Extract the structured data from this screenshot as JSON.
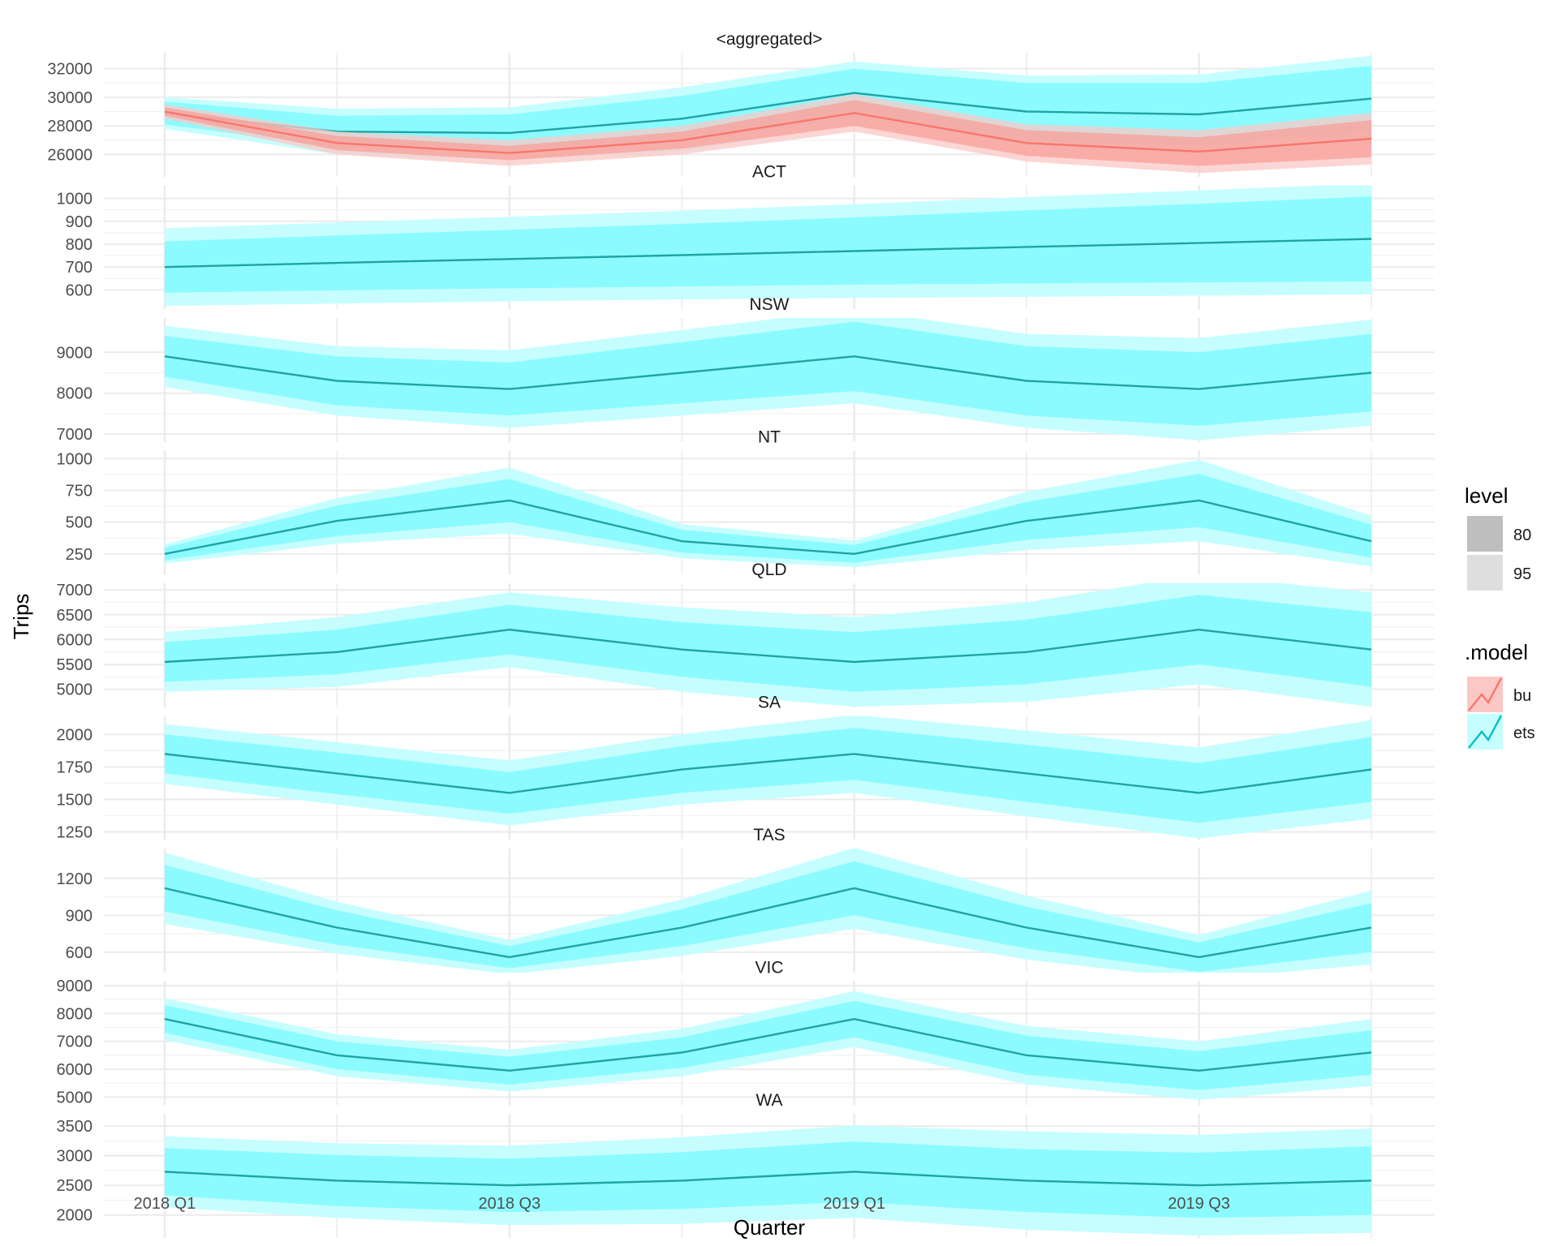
{
  "chart_data": {
    "type": "line",
    "xlabel": "Quarter",
    "ylabel": "Trips",
    "x": [
      "2018 Q1",
      "2018 Q2",
      "2018 Q3",
      "2018 Q4",
      "2019 Q1",
      "2019 Q2",
      "2019 Q3",
      "2019 Q4"
    ],
    "x_tick_labels": [
      "2018 Q1",
      "2018 Q3",
      "2019 Q1",
      "2019 Q3"
    ],
    "grid": true,
    "legends": [
      {
        "title": "level",
        "entries": [
          {
            "label": "80",
            "color": "#bebebe"
          },
          {
            "label": "95",
            "color": "#dedede"
          }
        ]
      },
      {
        "title": ".model",
        "entries": [
          {
            "label": "bu",
            "color": "#F8766D"
          },
          {
            "label": "ets",
            "color": "#00BFC4"
          }
        ]
      }
    ],
    "legend_position": "right",
    "colors": {
      "ets_line": "#1fa3a7",
      "ets_80": "#8cfbff",
      "ets_95": "#c6feff",
      "bu_line": "#F8766D",
      "bu_80": "#f99f9a",
      "bu_95": "#fbc8c5"
    },
    "panels": [
      {
        "title": "<aggregated>",
        "ylim": [
          25000,
          33000
        ],
        "yticks": [
          "26000",
          "28000",
          "30000",
          "32000"
        ],
        "series": [
          {
            "name": "ets",
            "values": [
              28900,
              27600,
              27500,
              28500,
              30300,
              29000,
              28800,
              29900
            ],
            "lo80": [
              28100,
              26500,
              26200,
              26900,
              28600,
              27000,
              26600,
              27600
            ],
            "hi80": [
              29700,
              28700,
              28800,
              30100,
              32000,
              31000,
              31000,
              32200
            ],
            "lo95": [
              27800,
              26000,
              25600,
              26200,
              28100,
              26500,
              26000,
              26900
            ],
            "hi95": [
              30000,
              29200,
              29300,
              30700,
              32500,
              31500,
              31600,
              32900
            ]
          },
          {
            "name": "bu",
            "values": [
              29000,
              26800,
              26100,
              27000,
              28900,
              26800,
              26200,
              27100
            ],
            "lo80": [
              28700,
              26300,
              25600,
              26400,
              28000,
              25900,
              25200,
              25800
            ],
            "hi80": [
              29300,
              27300,
              26600,
              27600,
              29800,
              27700,
              27200,
              28400
            ],
            "lo95": [
              28500,
              26000,
              25200,
              26000,
              27600,
              25500,
              24700,
              25300
            ],
            "hi95": [
              29500,
              27600,
              27000,
              28000,
              30200,
              28100,
              27700,
              28900
            ]
          }
        ]
      },
      {
        "title": "ACT",
        "ylim": [
          550,
          1050
        ],
        "yticks": [
          "600",
          "700",
          "800",
          "900",
          "1000"
        ],
        "series": [
          {
            "name": "ets",
            "values": [
              700,
              718,
              735,
              752,
              770,
              788,
              805,
              823
            ],
            "lo80": [
              588,
              598,
              607,
              615,
              623,
              628,
              633,
              637
            ],
            "hi80": [
              812,
              838,
              863,
              889,
              917,
              948,
              977,
              1009
            ],
            "lo95": [
              530,
              540,
              550,
              558,
              565,
              570,
              575,
              580
            ],
            "hi95": [
              870,
              895,
              920,
              946,
              975,
              1006,
              1035,
              1066
            ]
          }
        ]
      },
      {
        "title": "NSW",
        "ylim": [
          7000,
          9800
        ],
        "yticks": [
          "7000",
          "8000",
          "9000"
        ],
        "series": [
          {
            "name": "ets",
            "values": [
              8900,
              8300,
              8100,
              8500,
              8900,
              8300,
              8100,
              8500
            ],
            "lo80": [
              8400,
              7700,
              7450,
              7750,
              8050,
              7450,
              7200,
              7550
            ],
            "hi80": [
              9400,
              8900,
              8750,
              9250,
              9750,
              9150,
              9000,
              9450
            ],
            "lo95": [
              8150,
              7450,
              7150,
              7450,
              7750,
              7150,
              6850,
              7200
            ],
            "hi95": [
              9650,
              9150,
              9050,
              9550,
              10050,
              9450,
              9350,
              9800
            ]
          }
        ]
      },
      {
        "title": "NT",
        "ylim": [
          150,
          1050
        ],
        "yticks": [
          "250",
          "500",
          "750",
          "1000"
        ],
        "series": [
          {
            "name": "ets",
            "values": [
              250,
              510,
              670,
              350,
              250,
              510,
              670,
              350
            ],
            "lo80": [
              200,
              390,
              500,
              260,
              180,
              360,
              460,
              220
            ],
            "hi80": [
              300,
              630,
              840,
              440,
              320,
              660,
              880,
              480
            ],
            "lo95": [
              175,
              330,
              410,
              215,
              145,
              280,
              350,
              150
            ],
            "hi95": [
              325,
              690,
              930,
              485,
              355,
              740,
              990,
              550
            ]
          }
        ]
      },
      {
        "title": "QLD",
        "ylim": [
          4800,
          7100
        ],
        "yticks": [
          "5000",
          "5500",
          "6000",
          "6500",
          "7000"
        ],
        "series": [
          {
            "name": "ets",
            "values": [
              5550,
              5750,
              6200,
              5800,
              5550,
              5750,
              6200,
              5800
            ],
            "lo80": [
              5150,
              5300,
              5700,
              5250,
              4950,
              5100,
              5500,
              5050
            ],
            "hi80": [
              5950,
              6200,
              6700,
              6350,
              6150,
              6400,
              6900,
              6550
            ],
            "lo95": [
              4950,
              5050,
              5450,
              4950,
              4650,
              4750,
              5100,
              4650
            ],
            "hi95": [
              6150,
              6450,
              6950,
              6650,
              6450,
              6750,
              7300,
              6950
            ]
          }
        ]
      },
      {
        "title": "SA",
        "ylim": [
          1250,
          2130
        ],
        "yticks": [
          "1250",
          "1500",
          "1750",
          "2000"
        ],
        "series": [
          {
            "name": "ets",
            "values": [
              1850,
              1700,
              1550,
              1730,
              1850,
              1700,
              1550,
              1730
            ],
            "lo80": [
              1700,
              1540,
              1390,
              1550,
              1650,
              1480,
              1320,
              1480
            ],
            "hi80": [
              2000,
              1860,
              1710,
              1910,
              2050,
              1920,
              1780,
              1980
            ],
            "lo95": [
              1620,
              1460,
              1300,
              1460,
              1550,
              1370,
              1200,
              1350
            ],
            "hi95": [
              2080,
              1940,
              1800,
              2000,
              2150,
              2030,
              1900,
              2110
            ]
          }
        ]
      },
      {
        "title": "TAS",
        "ylim": [
          500,
          1430
        ],
        "yticks": [
          "600",
          "900",
          "1200"
        ],
        "series": [
          {
            "name": "ets",
            "values": [
              1120,
              800,
              560,
              800,
              1120,
              800,
              560,
              800
            ],
            "lo80": [
              930,
              660,
              470,
              650,
              900,
              630,
              440,
              600
            ],
            "hi80": [
              1310,
              940,
              650,
              950,
              1340,
              970,
              680,
              1000
            ],
            "lo95": [
              830,
              590,
              420,
              570,
              790,
              540,
              380,
              500
            ],
            "hi95": [
              1410,
              1010,
              700,
              1030,
              1450,
              1060,
              740,
              1100
            ]
          }
        ]
      },
      {
        "title": "VIC",
        "ylim": [
          5000,
          9100
        ],
        "yticks": [
          "5000",
          "6000",
          "7000",
          "8000",
          "9000"
        ],
        "series": [
          {
            "name": "ets",
            "values": [
              7800,
              6500,
              5950,
              6600,
              7800,
              6500,
              5950,
              6600
            ],
            "lo80": [
              7300,
              6000,
              5450,
              6050,
              7150,
              5800,
              5250,
              5800
            ],
            "hi80": [
              8300,
              7000,
              6450,
              7150,
              8450,
              7200,
              6650,
              7400
            ],
            "lo95": [
              7050,
              5750,
              5200,
              5750,
              6800,
              5450,
              4900,
              5400
            ],
            "hi95": [
              8550,
              7250,
              6700,
              7450,
              8800,
              7550,
              7000,
              7800
            ]
          }
        ]
      },
      {
        "title": "WA",
        "ylim": [
          1750,
          3680
        ],
        "yticks": [
          "2000",
          "2500",
          "3000",
          "3500"
        ],
        "series": [
          {
            "name": "ets",
            "values": [
              2730,
              2580,
              2500,
              2580,
              2730,
              2580,
              2500,
              2580
            ],
            "lo80": [
              2330,
              2150,
              2050,
              2100,
              2220,
              2050,
              1950,
              2000
            ],
            "hi80": [
              3130,
              3010,
              2950,
              3060,
              3240,
              3110,
              3050,
              3160
            ],
            "lo95": [
              2130,
              1950,
              1830,
              1850,
              1950,
              1750,
              1650,
              1700
            ],
            "hi95": [
              3330,
              3210,
              3170,
              3310,
              3510,
              3410,
              3350,
              3460
            ]
          }
        ]
      }
    ]
  }
}
